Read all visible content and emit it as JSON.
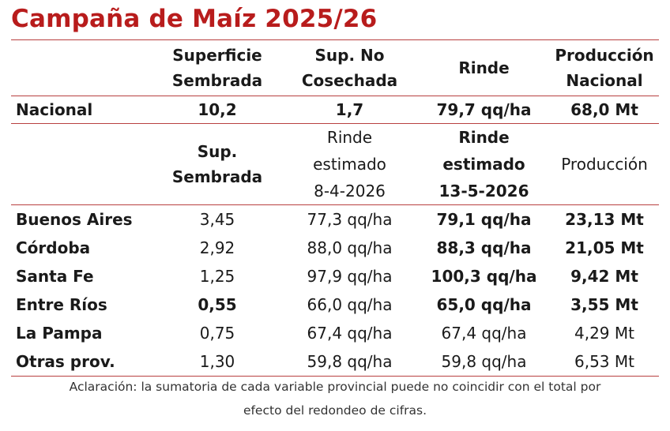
{
  "title": "Campaña de Maíz 2025/26",
  "colors": {
    "title": "#b81c1c",
    "rule": "#b84040"
  },
  "national_header": {
    "sup_sembrada": [
      "Superficie",
      "Sembrada"
    ],
    "sup_no_cosechada": [
      "Sup. No",
      "Cosechada"
    ],
    "rinde": "Rinde",
    "produccion": [
      "Producción",
      "Nacional"
    ]
  },
  "national_row": {
    "label": "Nacional",
    "sup_sembrada": "10,2",
    "sup_no_cosechada": "1,7",
    "rinde": "79,7 qq/ha",
    "produccion": "68,0 Mt"
  },
  "province_header": {
    "sup_sembrada": [
      "Sup.",
      "Sembrada"
    ],
    "rinde_prev": [
      "Rinde",
      "estimado",
      "8-4-2026"
    ],
    "rinde_new": [
      "Rinde",
      "estimado",
      "13-5-2026"
    ],
    "produccion": "Producción"
  },
  "provinces": [
    {
      "name": "Buenos Aires",
      "sup": "3,45",
      "rinde_prev": "77,3 qq/ha",
      "rinde_new": "79,1 qq/ha",
      "prod": "23,13 Mt",
      "sup_bold": false,
      "new_bold": true,
      "prod_bold": true
    },
    {
      "name": "Córdoba",
      "sup": "2,92",
      "rinde_prev": "88,0 qq/ha",
      "rinde_new": "88,3 qq/ha",
      "prod": "21,05 Mt",
      "sup_bold": false,
      "new_bold": true,
      "prod_bold": true
    },
    {
      "name": "Santa Fe",
      "sup": "1,25",
      "rinde_prev": "97,9 qq/ha",
      "rinde_new": "100,3 qq/ha",
      "prod": "9,42 Mt",
      "sup_bold": false,
      "new_bold": true,
      "prod_bold": true
    },
    {
      "name": "Entre Ríos",
      "sup": "0,55",
      "rinde_prev": "66,0 qq/ha",
      "rinde_new": "65,0 qq/ha",
      "prod": "3,55 Mt",
      "sup_bold": true,
      "new_bold": true,
      "prod_bold": true
    },
    {
      "name": "La Pampa",
      "sup": "0,75",
      "rinde_prev": "67,4 qq/ha",
      "rinde_new": "67,4 qq/ha",
      "prod": "4,29 Mt",
      "sup_bold": false,
      "new_bold": false,
      "prod_bold": false
    },
    {
      "name": "Otras prov.",
      "sup": "1,30",
      "rinde_prev": "59,8 qq/ha",
      "rinde_new": "59,8 qq/ha",
      "prod": "6,53 Mt",
      "sup_bold": false,
      "new_bold": false,
      "prod_bold": false
    }
  ],
  "note": [
    "Aclaración: la sumatoria de cada variable provincial puede no coincidir con el total por",
    "efecto del redondeo de cifras."
  ]
}
